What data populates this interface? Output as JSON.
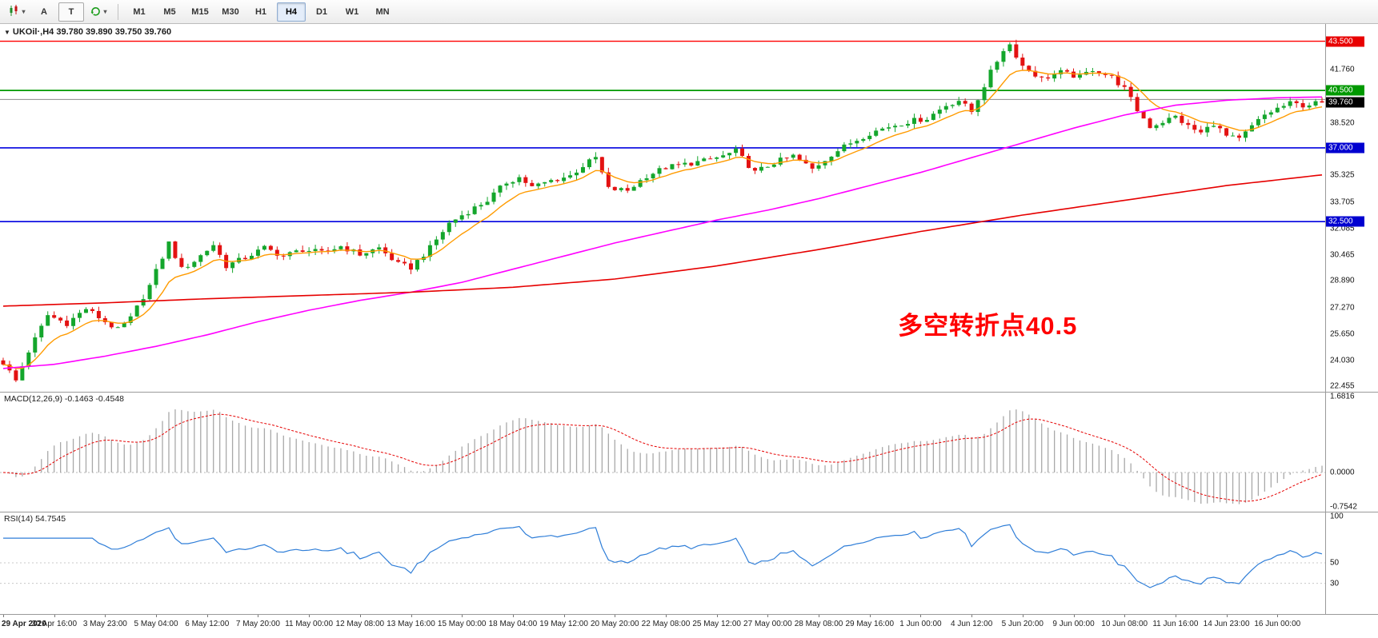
{
  "toolbar": {
    "tools": [
      {
        "name": "chart-type",
        "label": ""
      },
      {
        "name": "cursor",
        "label": "A"
      },
      {
        "name": "text",
        "label": "T"
      },
      {
        "name": "indicators",
        "label": ""
      }
    ],
    "dropdown_glyph": "▾",
    "timeframes": [
      "M1",
      "M5",
      "M15",
      "M30",
      "H1",
      "H4",
      "D1",
      "W1",
      "MN"
    ],
    "active_timeframe": "H4"
  },
  "chart": {
    "collapse_arrow_glyph": "▼",
    "symbol_label": "UKOil·,H4",
    "ohlc_text": "39.780 39.890 39.750 39.760",
    "annotation": {
      "text": "多空转折点40.5",
      "color": "#ff0000"
    }
  },
  "chart_data": {
    "type": "candlestick",
    "symbol": "UKOil",
    "timeframe": "H4",
    "n_candles": 208,
    "y_min": 22.13,
    "y_max": 44.55,
    "up_color": "#14a62c",
    "down_color": "#e31212",
    "close_anchors": [
      [
        0,
        23.9
      ],
      [
        2,
        22.8
      ],
      [
        4,
        24.6
      ],
      [
        7,
        26.8
      ],
      [
        10,
        26.3
      ],
      [
        13,
        27.2
      ],
      [
        16,
        26.4
      ],
      [
        18,
        25.9
      ],
      [
        20,
        26.6
      ],
      [
        23,
        28.6
      ],
      [
        26,
        31.2
      ],
      [
        28,
        29.6
      ],
      [
        30,
        30.1
      ],
      [
        33,
        31.1
      ],
      [
        35,
        29.8
      ],
      [
        38,
        30.3
      ],
      [
        41,
        30.9
      ],
      [
        44,
        30.4
      ],
      [
        47,
        30.8
      ],
      [
        50,
        30.6
      ],
      [
        53,
        31.0
      ],
      [
        56,
        30.5
      ],
      [
        59,
        30.9
      ],
      [
        62,
        29.9
      ],
      [
        64,
        29.7
      ],
      [
        67,
        30.9
      ],
      [
        70,
        32.4
      ],
      [
        72,
        32.9
      ],
      [
        76,
        33.8
      ],
      [
        79,
        34.9
      ],
      [
        81,
        35.2
      ],
      [
        83,
        34.6
      ],
      [
        86,
        35.0
      ],
      [
        89,
        35.3
      ],
      [
        91,
        35.9
      ],
      [
        93,
        36.4
      ],
      [
        95,
        34.5
      ],
      [
        98,
        34.4
      ],
      [
        101,
        35.3
      ],
      [
        104,
        35.8
      ],
      [
        107,
        36.0
      ],
      [
        110,
        36.2
      ],
      [
        113,
        36.5
      ],
      [
        115,
        36.8
      ],
      [
        118,
        35.5
      ],
      [
        121,
        36.1
      ],
      [
        124,
        36.5
      ],
      [
        127,
        35.7
      ],
      [
        130,
        36.6
      ],
      [
        133,
        37.3
      ],
      [
        136,
        37.9
      ],
      [
        139,
        38.3
      ],
      [
        142,
        38.6
      ],
      [
        145,
        38.8
      ],
      [
        148,
        39.6
      ],
      [
        150,
        39.9
      ],
      [
        152,
        39.2
      ],
      [
        155,
        41.6
      ],
      [
        157,
        43.0
      ],
      [
        158,
        43.3
      ],
      [
        160,
        42.0
      ],
      [
        163,
        41.2
      ],
      [
        166,
        41.6
      ],
      [
        169,
        41.3
      ],
      [
        171,
        41.8
      ],
      [
        174,
        41.3
      ],
      [
        176,
        40.6
      ],
      [
        178,
        39.3
      ],
      [
        180,
        38.3
      ],
      [
        182,
        38.6
      ],
      [
        184,
        38.9
      ],
      [
        186,
        38.3
      ],
      [
        188,
        37.9
      ],
      [
        190,
        38.5
      ],
      [
        192,
        37.7
      ],
      [
        194,
        37.5
      ],
      [
        196,
        38.3
      ],
      [
        198,
        39.0
      ],
      [
        200,
        39.4
      ],
      [
        202,
        39.7
      ],
      [
        204,
        39.6
      ],
      [
        207,
        39.76
      ]
    ],
    "ma_overlays": [
      {
        "name": "ma-fast",
        "color": "#ff9b00",
        "method": "ema",
        "period": 9,
        "width": 1.4
      },
      {
        "name": "ma-medium",
        "color": "#ff00ff",
        "method": "anchors",
        "width": 1.6,
        "anchors": [
          [
            0,
            23.55
          ],
          [
            8,
            23.8
          ],
          [
            16,
            24.3
          ],
          [
            24,
            24.9
          ],
          [
            32,
            25.6
          ],
          [
            40,
            26.4
          ],
          [
            48,
            27.1
          ],
          [
            56,
            27.7
          ],
          [
            64,
            28.2
          ],
          [
            72,
            28.8
          ],
          [
            80,
            29.6
          ],
          [
            88,
            30.4
          ],
          [
            96,
            31.2
          ],
          [
            104,
            31.9
          ],
          [
            112,
            32.6
          ],
          [
            120,
            33.2
          ],
          [
            128,
            33.9
          ],
          [
            136,
            34.7
          ],
          [
            144,
            35.5
          ],
          [
            152,
            36.4
          ],
          [
            160,
            37.3
          ],
          [
            168,
            38.2
          ],
          [
            176,
            39.0
          ],
          [
            184,
            39.6
          ],
          [
            192,
            39.9
          ],
          [
            200,
            40.05
          ],
          [
            207,
            40.1
          ]
        ]
      },
      {
        "name": "ma-slow",
        "color": "#e60000",
        "method": "anchors",
        "width": 1.6,
        "anchors": [
          [
            0,
            27.35
          ],
          [
            16,
            27.55
          ],
          [
            32,
            27.8
          ],
          [
            48,
            28.0
          ],
          [
            64,
            28.2
          ],
          [
            80,
            28.5
          ],
          [
            96,
            29.0
          ],
          [
            112,
            29.8
          ],
          [
            128,
            30.8
          ],
          [
            144,
            31.9
          ],
          [
            160,
            32.9
          ],
          [
            176,
            33.8
          ],
          [
            192,
            34.7
          ],
          [
            207,
            35.35
          ]
        ]
      }
    ],
    "levels": [
      {
        "price": 43.5,
        "color": "#ff0000",
        "width": 1.4,
        "badge": "43.500",
        "badge_bg": "#e80000"
      },
      {
        "price": 40.5,
        "color": "#009900",
        "width": 1.8,
        "badge": "40.500",
        "badge_bg": "#009900"
      },
      {
        "price": 39.95,
        "color": "#8a8a8a",
        "width": 1
      },
      {
        "price": 37.0,
        "color": "#0000e0",
        "width": 1.6,
        "badge": "37.000",
        "badge_bg": "#0000d0"
      },
      {
        "price": 32.5,
        "color": "#0000e0",
        "width": 1.6,
        "badge": "32.500",
        "badge_bg": "#0000d0"
      }
    ],
    "current_price": {
      "value": 39.76,
      "badge": "39.760",
      "badge_bg": "#000000"
    },
    "price_ticks": [
      {
        "v": 41.76,
        "t": "41.760"
      },
      {
        "v": 38.52,
        "t": "38.520"
      },
      {
        "v": 35.325,
        "t": "35.325"
      },
      {
        "v": 33.705,
        "t": "33.705"
      },
      {
        "v": 32.085,
        "t": "32.085"
      },
      {
        "v": 30.465,
        "t": "30.465"
      },
      {
        "v": 28.89,
        "t": "28.890"
      },
      {
        "v": 27.27,
        "t": "27.270"
      },
      {
        "v": 25.65,
        "t": "25.650"
      },
      {
        "v": 24.03,
        "t": "24.030"
      },
      {
        "v": 22.455,
        "t": "22.455"
      }
    ],
    "x_axis": {
      "candles_per_label": 8,
      "labels": [
        "29 Apr 2020",
        "30 Apr 16:00",
        "3 May 23:00",
        "5 May 04:00",
        "6 May 12:00",
        "7 May 20:00",
        "11 May 00:00",
        "12 May 08:00",
        "13 May 16:00",
        "15 May 00:00",
        "18 May 04:00",
        "19 May 12:00",
        "20 May 20:00",
        "22 May 08:00",
        "25 May 12:00",
        "27 May 00:00",
        "28 May 08:00",
        "29 May 16:00",
        "1 Jun 00:00",
        "4 Jun 12:00",
        "5 Jun 20:00",
        "9 Jun 00:00",
        "10 Jun 08:00",
        "11 Jun 16:00",
        "14 Jun 23:00",
        "16 Jun 00:00"
      ]
    },
    "macd": {
      "label": "MACD(12,26,9) -0.1463 -0.4548",
      "fast": 12,
      "slow": 26,
      "signal": 9,
      "range": [
        -0.85,
        1.75
      ],
      "hist_color": "#a8a8a8",
      "signal_color": "#e60000",
      "axis_labels": [
        {
          "v": 1.6816,
          "t": "1.6816"
        },
        {
          "v": 0,
          "t": "0.0000"
        },
        {
          "v": -0.7542,
          "t": "-0.7542"
        }
      ]
    },
    "rsi": {
      "label": "RSI(14) 54.7545",
      "period": 14,
      "range": [
        0,
        100
      ],
      "line_color": "#2f7ed8",
      "level_lines": [
        50,
        30
      ],
      "axis_labels": [
        {
          "v": 100,
          "t": "100"
        },
        {
          "v": 50,
          "t": "50"
        },
        {
          "v": 30,
          "t": "30"
        }
      ]
    }
  }
}
